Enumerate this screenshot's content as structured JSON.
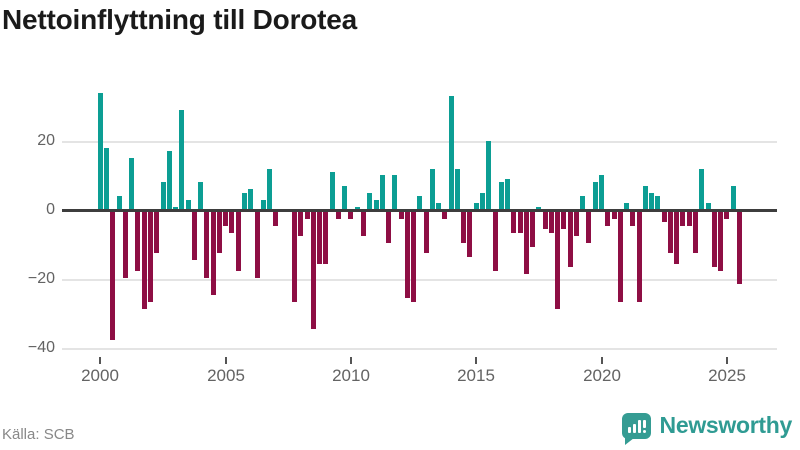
{
  "title": "Nettoinflyttning till Dorotea",
  "source": "Källa: SCB",
  "logo": {
    "text": "Newsworthy",
    "icon": "newsworthy-speech-bubble-bar-chart-icon"
  },
  "colors": {
    "positive_bar": "#0c9e94",
    "negative_bar": "#8e0e44",
    "zero_line": "#3d3d3d",
    "gridline": "#e4e4e4",
    "axis_text": "#636363",
    "title_text": "#1a1a1a",
    "source_text": "#888888",
    "logo_teal": "#2f9b93"
  },
  "chart_data": {
    "type": "bar",
    "title": "Nettoinflyttning till Dorotea",
    "xlabel": "",
    "ylabel": "",
    "frequency": "quarterly",
    "start": "2000Q1",
    "end": "2025Q3",
    "ylim": [
      -42,
      38
    ],
    "grid": "horizontal",
    "y_tick_labels": [
      "20",
      "0",
      "−20",
      "−40"
    ],
    "y_tick_values": [
      20,
      0,
      -20,
      -40
    ],
    "x_tick_labels": [
      "2000",
      "2005",
      "2010",
      "2015",
      "2020",
      "2025"
    ],
    "categories": [
      "2000Q1",
      "2000Q2",
      "2000Q3",
      "2000Q4",
      "2001Q1",
      "2001Q2",
      "2001Q3",
      "2001Q4",
      "2002Q1",
      "2002Q2",
      "2002Q3",
      "2002Q4",
      "2003Q1",
      "2003Q2",
      "2003Q3",
      "2003Q4",
      "2004Q1",
      "2004Q2",
      "2004Q3",
      "2004Q4",
      "2005Q1",
      "2005Q2",
      "2005Q3",
      "2005Q4",
      "2006Q1",
      "2006Q2",
      "2006Q3",
      "2006Q4",
      "2007Q1",
      "2007Q2",
      "2007Q3",
      "2007Q4",
      "2008Q1",
      "2008Q2",
      "2008Q3",
      "2008Q4",
      "2009Q1",
      "2009Q2",
      "2009Q3",
      "2009Q4",
      "2010Q1",
      "2010Q2",
      "2010Q3",
      "2010Q4",
      "2011Q1",
      "2011Q2",
      "2011Q3",
      "2011Q4",
      "2012Q1",
      "2012Q2",
      "2012Q3",
      "2012Q4",
      "2013Q1",
      "2013Q2",
      "2013Q3",
      "2013Q4",
      "2014Q1",
      "2014Q2",
      "2014Q3",
      "2014Q4",
      "2015Q1",
      "2015Q2",
      "2015Q3",
      "2015Q4",
      "2016Q1",
      "2016Q2",
      "2016Q3",
      "2016Q4",
      "2017Q1",
      "2017Q2",
      "2017Q3",
      "2017Q4",
      "2018Q1",
      "2018Q2",
      "2018Q3",
      "2018Q4",
      "2019Q1",
      "2019Q2",
      "2019Q3",
      "2019Q4",
      "2020Q1",
      "2020Q2",
      "2020Q3",
      "2020Q4",
      "2021Q1",
      "2021Q2",
      "2021Q3",
      "2021Q4",
      "2022Q1",
      "2022Q2",
      "2022Q3",
      "2022Q4",
      "2023Q1",
      "2023Q2",
      "2023Q3",
      "2023Q4",
      "2024Q1",
      "2024Q2",
      "2024Q3",
      "2024Q4",
      "2025Q1",
      "2025Q2",
      "2025Q3"
    ],
    "values": [
      34,
      18,
      -37,
      4,
      -19,
      15,
      -17,
      -28,
      -26,
      -12,
      8,
      17,
      1,
      29,
      3,
      -14,
      8,
      -19,
      -24,
      -12,
      -4,
      -6,
      -17,
      5,
      6,
      -19,
      3,
      12,
      -4,
      0,
      0,
      -26,
      -7,
      -2,
      -34,
      -15,
      -15,
      11,
      -2,
      7,
      -2,
      1,
      -7,
      5,
      3,
      10,
      -9,
      10,
      -2,
      -25,
      -26,
      4,
      -12,
      12,
      2,
      -2,
      33,
      12,
      -9,
      -13,
      2,
      5,
      20,
      -17,
      8,
      9,
      -6,
      -6,
      -18,
      -10,
      1,
      -5,
      -6,
      -28,
      -5,
      -16,
      -7,
      4,
      -9,
      8,
      10,
      -4,
      -2,
      -26,
      2,
      -4,
      -26,
      7,
      5,
      4,
      -3,
      -12,
      -15,
      -4,
      -4,
      -12,
      12,
      2,
      -16,
      -17,
      -2,
      7,
      -21
    ]
  }
}
